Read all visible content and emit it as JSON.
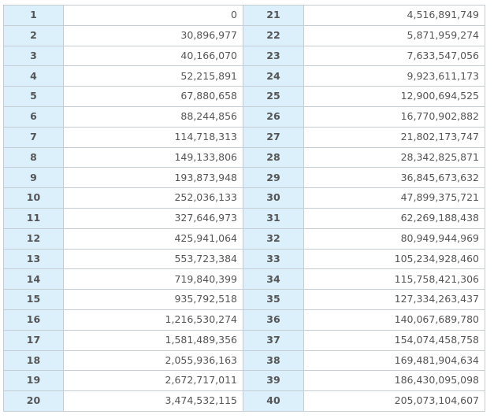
{
  "table": {
    "rows": [
      {
        "left_index": "1",
        "left_value": "0",
        "right_index": "21",
        "right_value": "4,516,891,749"
      },
      {
        "left_index": "2",
        "left_value": "30,896,977",
        "right_index": "22",
        "right_value": "5,871,959,274"
      },
      {
        "left_index": "3",
        "left_value": "40,166,070",
        "right_index": "23",
        "right_value": "7,633,547,056"
      },
      {
        "left_index": "4",
        "left_value": "52,215,891",
        "right_index": "24",
        "right_value": "9,923,611,173"
      },
      {
        "left_index": "5",
        "left_value": "67,880,658",
        "right_index": "25",
        "right_value": "12,900,694,525"
      },
      {
        "left_index": "6",
        "left_value": "88,244,856",
        "right_index": "26",
        "right_value": "16,770,902,882"
      },
      {
        "left_index": "7",
        "left_value": "114,718,313",
        "right_index": "27",
        "right_value": "21,802,173,747"
      },
      {
        "left_index": "8",
        "left_value": "149,133,806",
        "right_index": "28",
        "right_value": "28,342,825,871"
      },
      {
        "left_index": "9",
        "left_value": "193,873,948",
        "right_index": "29",
        "right_value": "36,845,673,632"
      },
      {
        "left_index": "10",
        "left_value": "252,036,133",
        "right_index": "30",
        "right_value": "47,899,375,721"
      },
      {
        "left_index": "11",
        "left_value": "327,646,973",
        "right_index": "31",
        "right_value": "62,269,188,438"
      },
      {
        "left_index": "12",
        "left_value": "425,941,064",
        "right_index": "32",
        "right_value": "80,949,944,969"
      },
      {
        "left_index": "13",
        "left_value": "553,723,384",
        "right_index": "33",
        "right_value": "105,234,928,460"
      },
      {
        "left_index": "14",
        "left_value": "719,840,399",
        "right_index": "34",
        "right_value": "115,758,421,306"
      },
      {
        "left_index": "15",
        "left_value": "935,792,518",
        "right_index": "35",
        "right_value": "127,334,263,437"
      },
      {
        "left_index": "16",
        "left_value": "1,216,530,274",
        "right_index": "36",
        "right_value": "140,067,689,780"
      },
      {
        "left_index": "17",
        "left_value": "1,581,489,356",
        "right_index": "37",
        "right_value": "154,074,458,758"
      },
      {
        "left_index": "18",
        "left_value": "2,055,936,163",
        "right_index": "38",
        "right_value": "169,481,904,634"
      },
      {
        "left_index": "19",
        "left_value": "2,672,717,011",
        "right_index": "39",
        "right_value": "186,430,095,098"
      },
      {
        "left_index": "20",
        "left_value": "3,474,532,115",
        "right_index": "40",
        "right_value": "205,073,104,607"
      }
    ]
  }
}
